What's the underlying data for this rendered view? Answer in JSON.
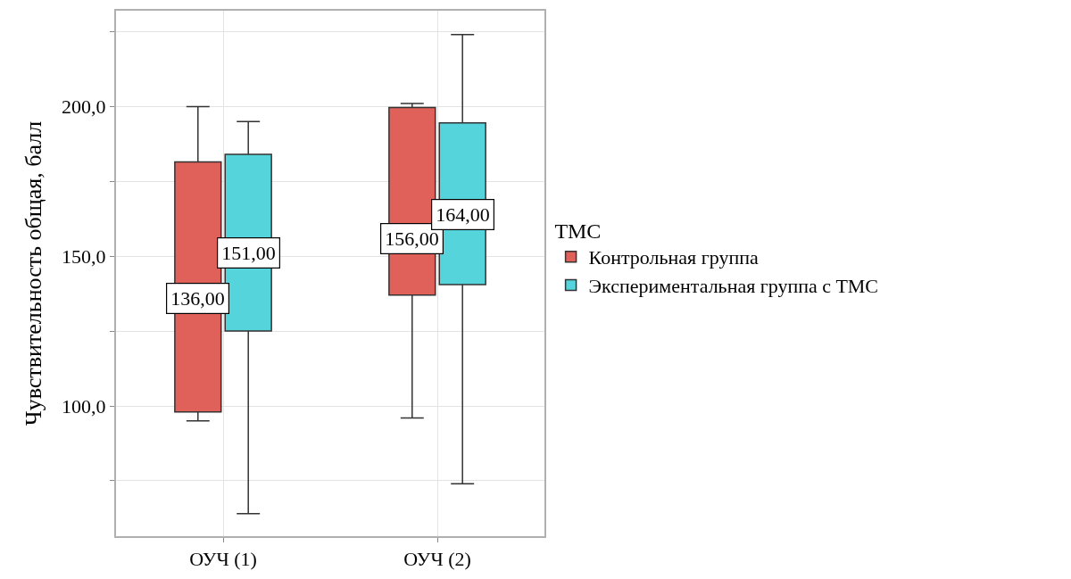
{
  "chart_data": {
    "type": "box",
    "ylabel": "Чувствительность общая, балл",
    "legend_title": "ТМС",
    "categories": [
      "ОУЧ (1)",
      "ОУЧ (2)"
    ],
    "series": [
      {
        "name": "Контрольная группа",
        "color": "#e0605a",
        "boxes": [
          {
            "low": 95,
            "q1": 98,
            "median": 136,
            "q3": 181.5,
            "high": 200
          },
          {
            "low": 96,
            "q1": 137,
            "median": 156,
            "q3": 199.7,
            "high": 201
          }
        ],
        "value_labels": [
          "136,00",
          "156,00"
        ]
      },
      {
        "name": "Экспериментальная группа с ТМС",
        "color": "#55d4dc",
        "boxes": [
          {
            "low": 64,
            "q1": 125,
            "median": 151,
            "q3": 184,
            "high": 195
          },
          {
            "low": 74,
            "q1": 140.5,
            "median": 164,
            "q3": 194.5,
            "high": 224
          }
        ],
        "value_labels": [
          "151,00",
          "164,00"
        ]
      }
    ],
    "ylim": [
      56.5,
      232
    ],
    "yticks": [
      {
        "value": 75,
        "label": null
      },
      {
        "value": 100,
        "label": "100,0"
      },
      {
        "value": 125,
        "label": null
      },
      {
        "value": 150,
        "label": "150,0"
      },
      {
        "value": 175,
        "label": null
      },
      {
        "value": 200,
        "label": "200,0"
      },
      {
        "value": 225,
        "label": null
      }
    ],
    "grid": true,
    "legend": "right"
  }
}
